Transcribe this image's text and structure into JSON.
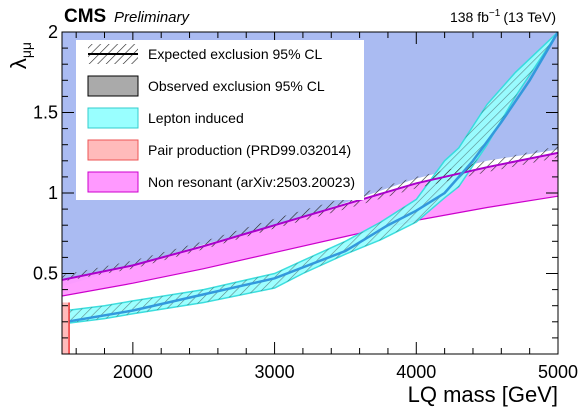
{
  "chart_data": {
    "type": "area",
    "experiment": "CMS",
    "status": "Preliminary",
    "luminosity": {
      "value": "138 fb",
      "superscript": "−1",
      "energy": "(13 TeV)"
    },
    "xlabel": "LQ mass [GeV]",
    "ylabel": {
      "main": "λ",
      "subscript": "μμ"
    },
    "xlim": [
      1500,
      5000
    ],
    "ylim": [
      0,
      2
    ],
    "x_ticks": [
      2000,
      3000,
      4000,
      5000
    ],
    "y_ticks": [
      0.5,
      1,
      1.5,
      2
    ],
    "x_tick_labels": [
      "2000",
      "3000",
      "4000",
      "5000"
    ],
    "y_tick_labels": [
      "0.5",
      "1",
      "1.5",
      "2"
    ],
    "legend_placement": "top-left",
    "legend": [
      {
        "id": "expected",
        "label": "Expected exclusion 95% CL",
        "style": "hatched"
      },
      {
        "id": "observed",
        "label": "Observed exclusion 95% CL",
        "style": "fill",
        "fill": "#aaaaaa"
      },
      {
        "id": "lepton",
        "label": "Lepton induced",
        "style": "fill",
        "fill": "#99ffff",
        "line": "#33cccc"
      },
      {
        "id": "pair",
        "label": "Pair production (PRD99.032014)",
        "style": "fill",
        "fill": "#ffbbbb",
        "line": "#ee5555"
      },
      {
        "id": "nonres",
        "label": "Non resonant (arXiv:2503.20023)",
        "style": "fill",
        "fill": "#ff99ff",
        "line": "#cc00cc"
      }
    ],
    "regions": {
      "observed_combined": {
        "fill": "#aabbf2",
        "x": [
          1500,
          2000,
          2500,
          3000,
          3500,
          4000,
          4500,
          5000
        ],
        "upper": [
          0.42,
          0.55,
          0.68,
          0.8,
          0.94,
          1.09,
          1.2,
          1.27
        ]
      },
      "nonresonant": {
        "fill": "#ff99ff",
        "line": "#cc00cc",
        "x": [
          1500,
          2000,
          2500,
          3000,
          3500,
          4000,
          4500,
          5000
        ],
        "upper": [
          0.46,
          0.55,
          0.67,
          0.8,
          0.93,
          1.06,
          1.16,
          1.25
        ],
        "lower": [
          0.36,
          0.44,
          0.53,
          0.63,
          0.73,
          0.83,
          0.91,
          0.98
        ]
      },
      "lepton_induced": {
        "fill": "#99ffff",
        "line": "#33dddd",
        "x": [
          1530,
          1800,
          2000,
          2500,
          3000,
          3200,
          3500,
          3750,
          4000,
          4200,
          4300,
          4500,
          4700,
          5000
        ],
        "upper": [
          0.27,
          0.3,
          0.33,
          0.4,
          0.5,
          0.58,
          0.7,
          0.82,
          0.96,
          1.2,
          1.28,
          1.55,
          1.75,
          2.0
        ],
        "lower": [
          0.19,
          0.22,
          0.25,
          0.32,
          0.41,
          0.5,
          0.62,
          0.71,
          0.82,
          0.97,
          1.04,
          1.3,
          1.6,
          2.0
        ]
      },
      "pair_production": {
        "fill": "#ffbbbb",
        "line": "#ee3333",
        "x_max": 1550,
        "y_max": 0.32
      }
    },
    "lines": {
      "nonres_expected": {
        "color": "#aa00cc",
        "x": [
          1500,
          2000,
          2500,
          3000,
          3500,
          4000,
          4500,
          5000
        ],
        "y": [
          0.46,
          0.55,
          0.67,
          0.8,
          0.93,
          1.06,
          1.16,
          1.25
        ]
      },
      "lepton_expected": {
        "color": "#3399dd",
        "x": [
          1530,
          2000,
          2500,
          3000,
          3500,
          3800,
          4000,
          4200,
          4400,
          4600,
          4800,
          5000
        ],
        "y": [
          0.2,
          0.27,
          0.37,
          0.47,
          0.64,
          0.8,
          0.89,
          1.0,
          1.2,
          1.44,
          1.7,
          2.0
        ]
      }
    },
    "expected_band_hatch": {
      "x": [
        1500,
        2000,
        2500,
        3000,
        3500,
        4000,
        4500,
        5000
      ],
      "upper": [
        0.49,
        0.58,
        0.7,
        0.84,
        0.97,
        1.1,
        1.2,
        1.29
      ],
      "lower": [
        0.45,
        0.53,
        0.65,
        0.78,
        0.9,
        1.03,
        1.13,
        1.22
      ]
    }
  }
}
